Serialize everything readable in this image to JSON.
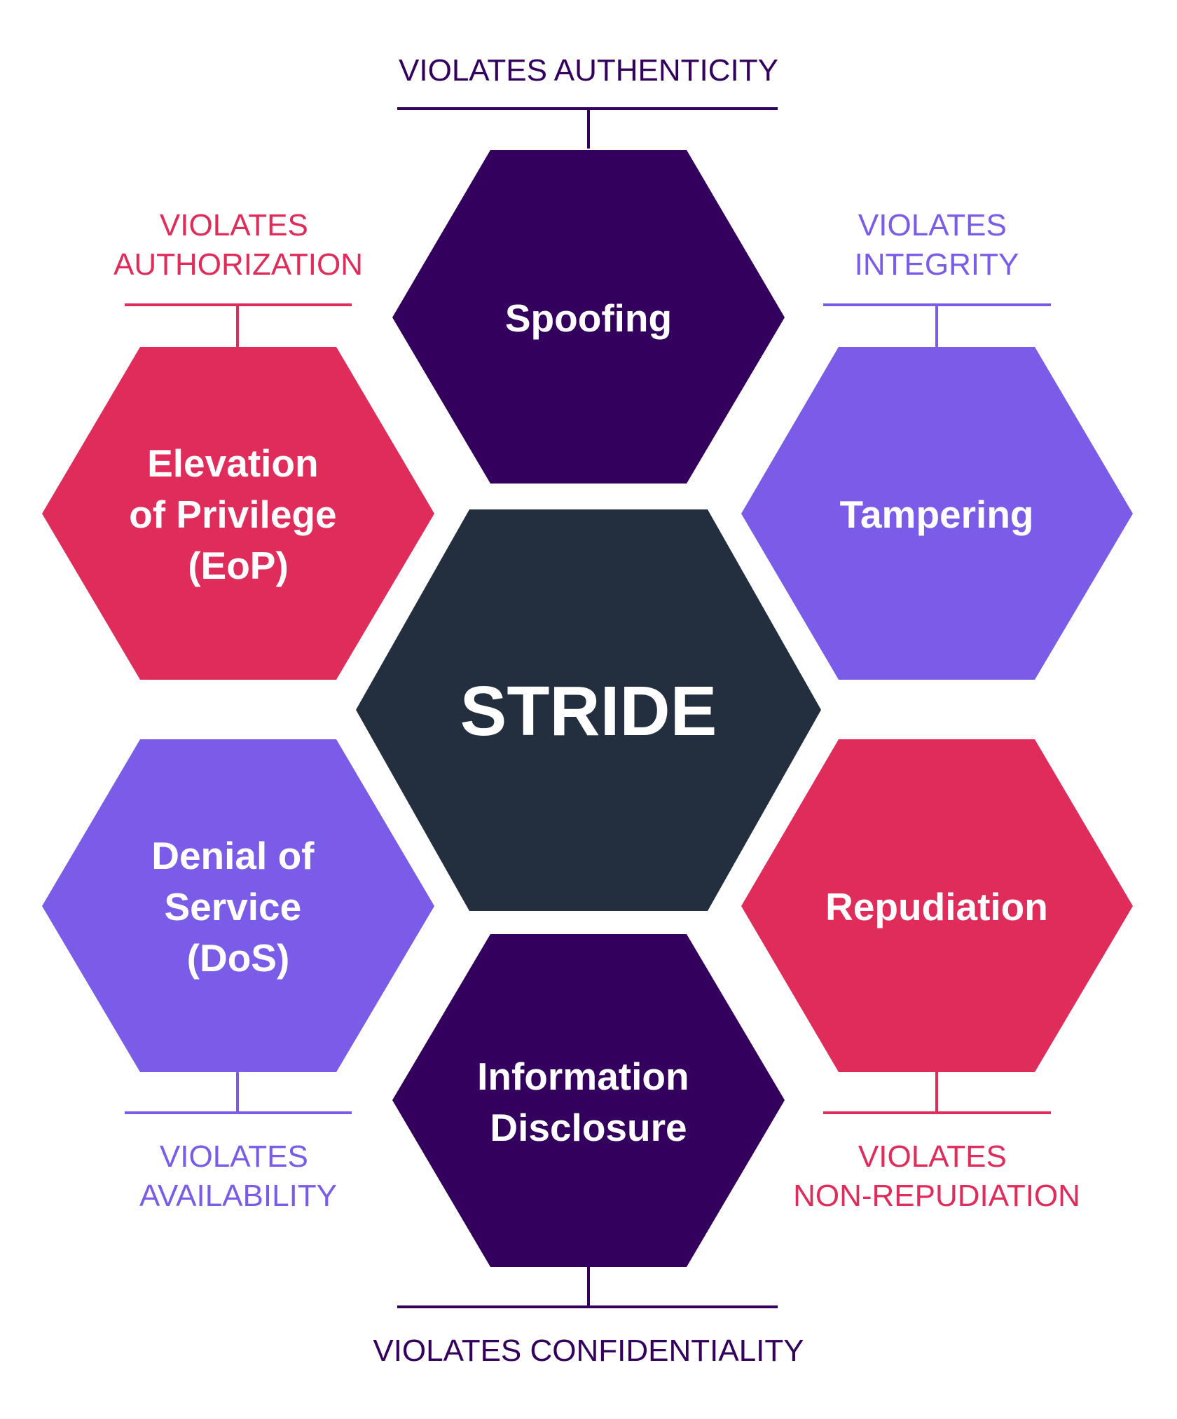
{
  "diagram": {
    "title": "STRIDE",
    "colors": {
      "background": "#ffffff",
      "center": "#232f3e",
      "dark_purple": "#33005e",
      "violet": "#7b5ce9",
      "crimson": "#e02c5b"
    },
    "center": {
      "label": "STRIDE"
    },
    "threats": {
      "spoofing": {
        "lines": [
          "Spoofing"
        ],
        "violates": [
          "VIOLATES AUTHENTICITY"
        ]
      },
      "tampering": {
        "lines": [
          "Tampering"
        ],
        "violates": [
          "VIOLATES",
          "INTEGRITY"
        ]
      },
      "repudiation": {
        "lines": [
          "Repudiation"
        ],
        "violates": [
          "VIOLATES",
          "NON-REPUDIATION"
        ]
      },
      "information_disclosure": {
        "lines": [
          "Information",
          "Disclosure"
        ],
        "violates": [
          "VIOLATES CONFIDENTIALITY"
        ]
      },
      "denial_of_service": {
        "lines": [
          "Denial of",
          "Service",
          "(DoS)"
        ],
        "violates": [
          "VIOLATES",
          "AVAILABILITY"
        ]
      },
      "elevation_of_privilege": {
        "lines": [
          "Elevation",
          "of Privilege",
          "(EoP)"
        ],
        "violates": [
          "VIOLATES",
          "AUTHORIZATION"
        ]
      }
    }
  }
}
